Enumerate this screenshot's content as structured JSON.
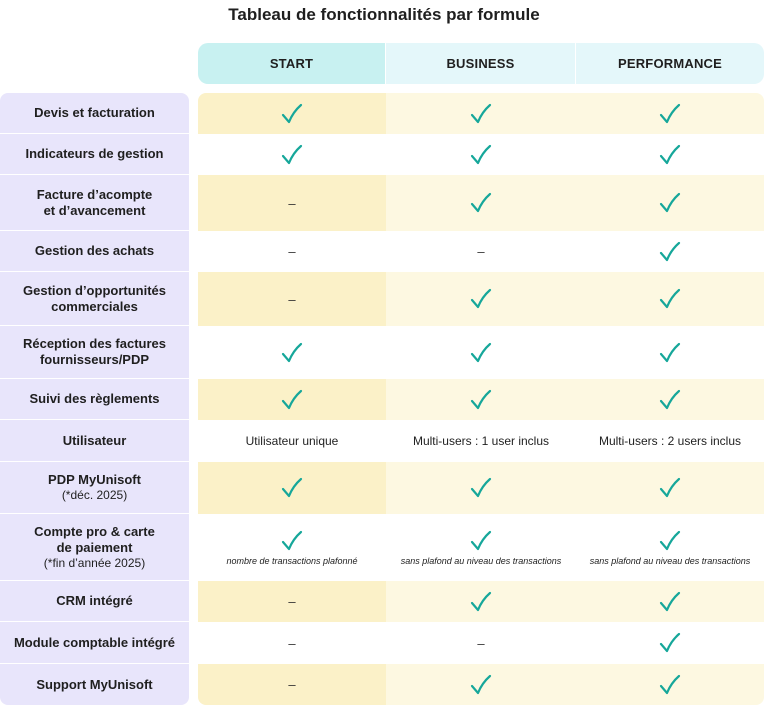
{
  "title": "Tableau de fonctionnalités par formule",
  "columns": [
    "START",
    "BUSINESS",
    "PERFORMANCE"
  ],
  "accent": {
    "check": "#16a79a",
    "header_start": "#c8f1f1",
    "header_other": "#e4f7fa",
    "label_bg": "#e8e5fb",
    "shade": "#fdf8e1"
  },
  "rows": [
    {
      "label": "Devis et facturation",
      "shaded": true,
      "cells": [
        {
          "type": "check"
        },
        {
          "type": "check"
        },
        {
          "type": "check"
        }
      ]
    },
    {
      "label": "Indicateurs de gestion",
      "shaded": false,
      "cells": [
        {
          "type": "check"
        },
        {
          "type": "check"
        },
        {
          "type": "check"
        }
      ]
    },
    {
      "label": "Facture d’acompte",
      "label2": "et d’avancement",
      "shaded": true,
      "cells": [
        {
          "type": "dash",
          "text": "–"
        },
        {
          "type": "check"
        },
        {
          "type": "check"
        }
      ]
    },
    {
      "label": "Gestion des achats",
      "shaded": false,
      "cells": [
        {
          "type": "dash",
          "text": "–"
        },
        {
          "type": "dash",
          "text": "–"
        },
        {
          "type": "check"
        }
      ]
    },
    {
      "label": "Gestion d’opportunités",
      "label2": "commerciales",
      "shaded": true,
      "cells": [
        {
          "type": "dash",
          "text": "–"
        },
        {
          "type": "check"
        },
        {
          "type": "check"
        }
      ]
    },
    {
      "label": "Réception des factures",
      "label2": "fournisseurs/PDP",
      "shaded": false,
      "cells": [
        {
          "type": "check"
        },
        {
          "type": "check"
        },
        {
          "type": "check"
        }
      ]
    },
    {
      "label": "Suivi des règlements",
      "shaded": true,
      "cells": [
        {
          "type": "check"
        },
        {
          "type": "check"
        },
        {
          "type": "check"
        }
      ]
    },
    {
      "label": "Utilisateur",
      "shaded": false,
      "cells": [
        {
          "type": "text",
          "text": "Utilisateur unique"
        },
        {
          "type": "text",
          "text": "Multi-users : 1 user inclus"
        },
        {
          "type": "text",
          "text": "Multi-users : 2 users inclus"
        }
      ]
    },
    {
      "label": "PDP MyUnisoft",
      "note": "(*déc. 2025)",
      "shaded": true,
      "cells": [
        {
          "type": "check"
        },
        {
          "type": "check"
        },
        {
          "type": "check"
        }
      ]
    },
    {
      "label": "Compte pro & carte",
      "label2": "de paiement",
      "note": "(*fin d’année 2025)",
      "shaded": false,
      "cells": [
        {
          "type": "check",
          "fine": "nombre de transactions plafonné"
        },
        {
          "type": "check",
          "fine": "sans plafond au niveau des transactions"
        },
        {
          "type": "check",
          "fine": "sans plafond au niveau des transactions"
        }
      ]
    },
    {
      "label": "CRM intégré",
      "shaded": true,
      "cells": [
        {
          "type": "dash",
          "text": "–"
        },
        {
          "type": "check"
        },
        {
          "type": "check"
        }
      ]
    },
    {
      "label": "Module comptable intégré",
      "shaded": false,
      "cells": [
        {
          "type": "dash",
          "text": "–"
        },
        {
          "type": "dash",
          "text": "–"
        },
        {
          "type": "check"
        }
      ]
    },
    {
      "label": "Support MyUnisoft",
      "shaded": true,
      "cells": [
        {
          "type": "dash",
          "text": "–"
        },
        {
          "type": "check"
        },
        {
          "type": "check"
        }
      ]
    }
  ]
}
